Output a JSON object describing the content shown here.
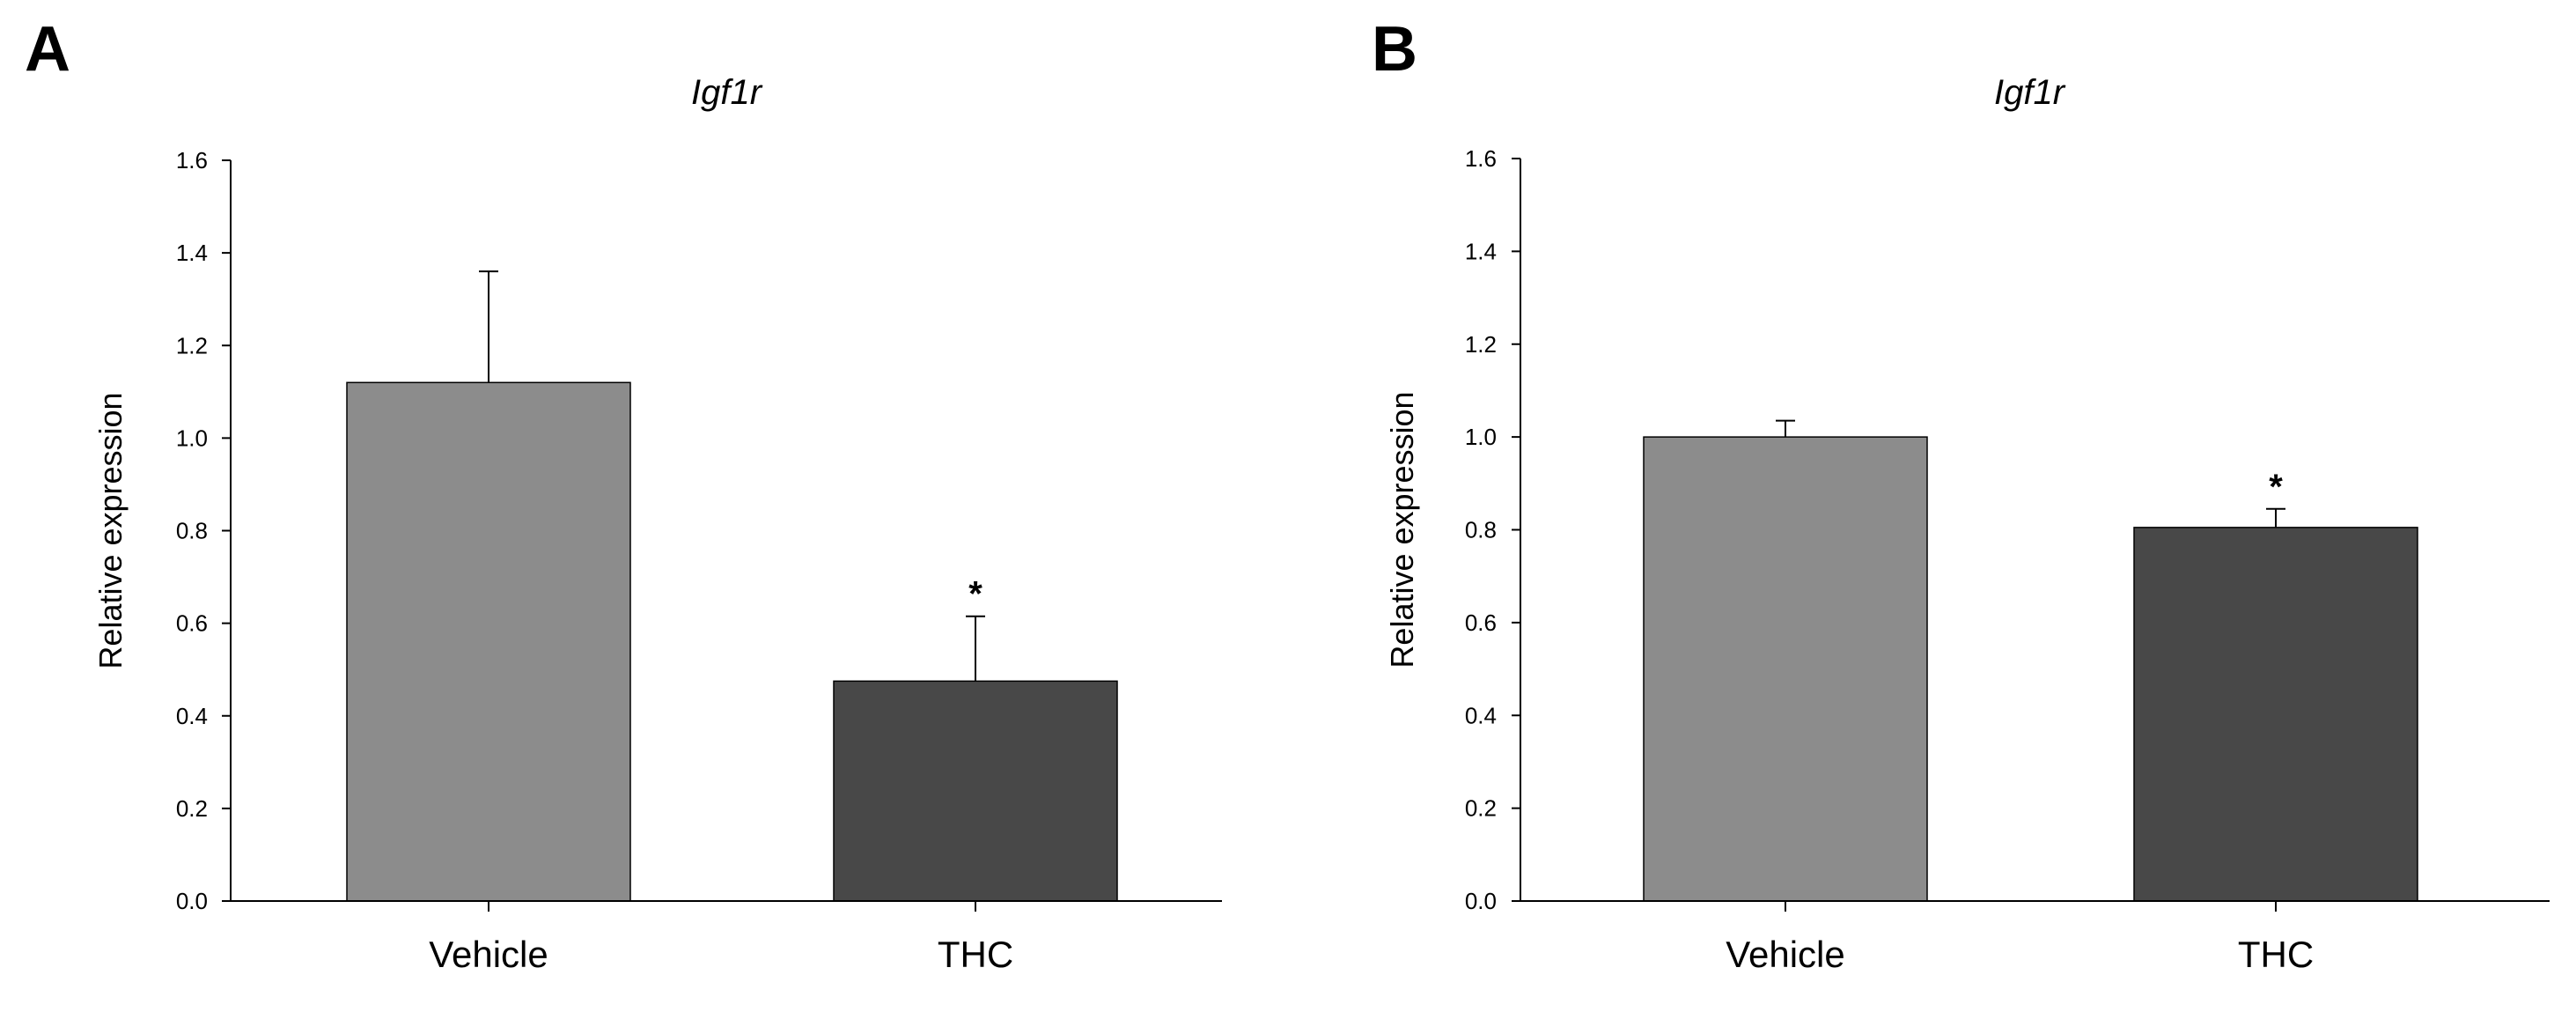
{
  "figure": {
    "panels": [
      "A",
      "B"
    ]
  },
  "colors": {
    "vehicle": "#8c8c8c",
    "thc": "#484848",
    "axis": "#000000",
    "text": "#000000"
  },
  "chart_data": [
    {
      "panel_label": "A",
      "type": "bar",
      "title": "Igf1r",
      "xlabel": "",
      "ylabel": "Relative expression",
      "ylim": [
        0,
        1.6
      ],
      "yticks": [
        0,
        0.2,
        0.4,
        0.6,
        0.8,
        1.0,
        1.2,
        1.4,
        1.6
      ],
      "ytick_labels": [
        "0.0",
        "0.2",
        "0.4",
        "0.6",
        "0.8",
        "1.0",
        "1.2",
        "1.4",
        "1.6"
      ],
      "categories": [
        "Vehicle",
        "THC"
      ],
      "values": [
        1.12,
        0.475
      ],
      "errors": [
        0.24,
        0.14
      ],
      "significance": [
        "",
        "*"
      ],
      "grid": false
    },
    {
      "panel_label": "B",
      "type": "bar",
      "title": "Igf1r",
      "xlabel": "",
      "ylabel": "Relative expression",
      "ylim": [
        0,
        1.6
      ],
      "yticks": [
        0,
        0.2,
        0.4,
        0.6,
        0.8,
        1.0,
        1.2,
        1.4,
        1.6
      ],
      "ytick_labels": [
        "0.0",
        "0.2",
        "0.4",
        "0.6",
        "0.8",
        "1.0",
        "1.2",
        "1.4",
        "1.6"
      ],
      "categories": [
        "Vehicle",
        "THC"
      ],
      "values": [
        1.0,
        0.805
      ],
      "errors": [
        0.035,
        0.04
      ],
      "significance": [
        "",
        "*"
      ],
      "grid": false
    }
  ]
}
